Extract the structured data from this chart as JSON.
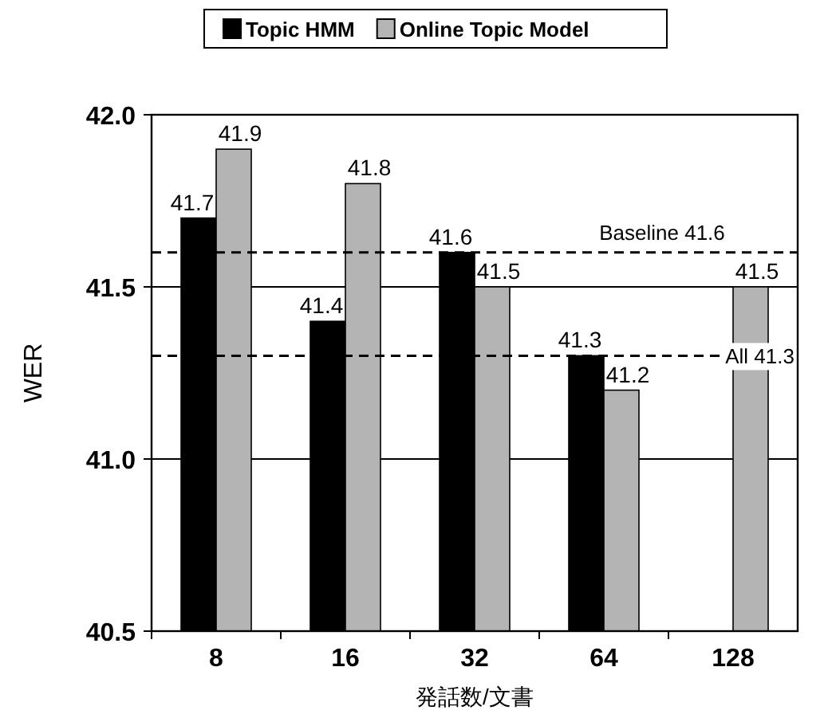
{
  "chart_data": {
    "type": "bar",
    "xlabel": "発話数/文書",
    "ylabel": "WER",
    "categories": [
      "8",
      "16",
      "32",
      "64",
      "128"
    ],
    "series": [
      {
        "name": "Topic HMM",
        "color": "#000000",
        "values": [
          41.7,
          41.4,
          41.6,
          41.3,
          null
        ]
      },
      {
        "name": "Online Topic Model",
        "color": "#b4b4b4",
        "values": [
          41.9,
          41.8,
          41.5,
          41.2,
          41.5
        ]
      }
    ],
    "ylim": [
      40.5,
      42.0
    ],
    "yticks": [
      {
        "value": 40.5,
        "label": "40.5"
      },
      {
        "value": 41.0,
        "label": "41.0"
      },
      {
        "value": 41.5,
        "label": "41.5"
      },
      {
        "value": 42.0,
        "label": "42.0"
      }
    ],
    "grid": "y",
    "legend": "top",
    "data_labels": true,
    "ref_lines": [
      {
        "axis": "y",
        "value": 41.6,
        "label": "Baseline 41.6",
        "line_style": "dashed"
      },
      {
        "axis": "y",
        "value": 41.3,
        "label": "All 41.3",
        "line_style": "dashed"
      }
    ]
  }
}
